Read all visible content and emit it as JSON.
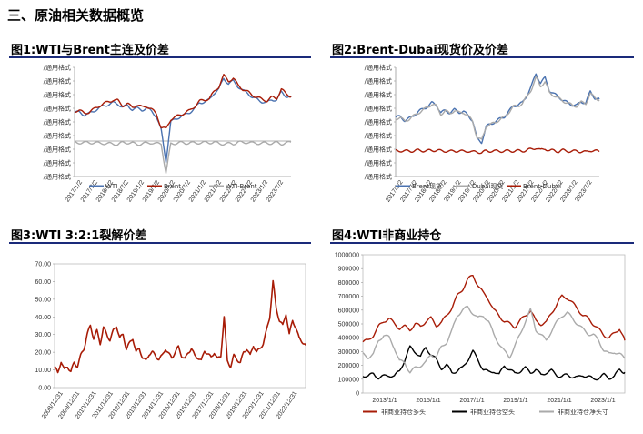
{
  "section": {
    "title": "三、原油相关数据概览"
  },
  "colors": {
    "red": "#a81c07",
    "blue": "#4a72b0",
    "gray": "#aaaaaa",
    "black": "#000000",
    "rule": "#1a2a7a"
  },
  "chart_data": [
    {
      "id": "fig1",
      "type": "line",
      "title": "图1:WTI与Brent主连及价差",
      "y_tick_labels": [
        "/通用格式",
        "/通用格式",
        "/通用格式",
        "/通用格式",
        "/通用格式",
        "/通用格式",
        "/通用格式",
        "/通用格式",
        "/通用格式"
      ],
      "x_tick_labels": [
        "2017/1/2",
        "2017/7/2",
        "2018/1/2",
        "2018/7/2",
        "2019/1/2",
        "2019/7/2",
        "2020/1/2",
        "2020/7/2",
        "2021/1/2",
        "2021/7/2",
        "2022/1/2",
        "2022/7/2",
        "2023/1/2",
        "2023/7/2"
      ],
      "series": [
        {
          "name": "WTI",
          "color": "blue",
          "values": [
            52,
            53,
            48,
            50,
            55,
            60,
            64,
            67,
            70,
            68,
            62,
            65,
            58,
            60,
            57,
            60,
            55,
            45,
            20,
            -37,
            35,
            40,
            45,
            48,
            53,
            60,
            70,
            72,
            75,
            88,
            95,
            115,
            105,
            110,
            100,
            92,
            88,
            80,
            76,
            72,
            70,
            76,
            75,
            90,
            82,
            80
          ]
        },
        {
          "name": "Brent",
          "color": "red",
          "values": [
            55,
            56,
            51,
            53,
            58,
            64,
            68,
            72,
            75,
            74,
            65,
            68,
            62,
            66,
            62,
            64,
            58,
            50,
            25,
            22,
            40,
            44,
            48,
            52,
            56,
            64,
            73,
            75,
            78,
            90,
            100,
            120,
            110,
            115,
            102,
            95,
            90,
            84,
            80,
            76,
            74,
            80,
            78,
            95,
            86,
            82
          ]
        },
        {
          "name": "WTI-Brent",
          "color": "gray",
          "values": [
            -3,
            -3,
            -3,
            -3,
            -3,
            -4,
            -4,
            -5,
            -5,
            -6,
            -3,
            -3,
            -4,
            -6,
            -5,
            -4,
            -3,
            -5,
            -5,
            -59,
            -5,
            -4,
            -3,
            -4,
            -3,
            -4,
            -3,
            -3,
            -3,
            -2,
            -5,
            -5,
            -5,
            -5,
            -2,
            -3,
            -2,
            -4,
            -4,
            -4,
            -4,
            -4,
            -3,
            -5,
            -4,
            -2
          ]
        }
      ],
      "ylim": [
        -65,
        135
      ]
    },
    {
      "id": "fig2",
      "type": "line",
      "title": "图2:Brent-Dubai现货价及价差",
      "y_tick_labels": [
        "/通用格式",
        "/通用格式",
        "/通用格式",
        "/通用格式",
        "/通用格式",
        "/通用格式",
        "/通用格式",
        "/通用格式",
        "/通用格式"
      ],
      "x_tick_labels": [
        "2017/1/2",
        "2017/7/2",
        "2018/1/2",
        "2018/7/2",
        "2019/1/2",
        "2019/7/2",
        "2020/1/2",
        "2020/7/2",
        "2021/1/2",
        "2021/7/2",
        "2022/1/2",
        "2022/7/2",
        "2023/1/2",
        "2023/7/2"
      ],
      "series": [
        {
          "name": "Brent现货",
          "color": "blue",
          "values": [
            55,
            56,
            50,
            53,
            58,
            64,
            68,
            72,
            78,
            75,
            62,
            66,
            62,
            67,
            63,
            64,
            58,
            50,
            20,
            15,
            40,
            44,
            48,
            52,
            56,
            64,
            73,
            75,
            78,
            90,
            105,
            125,
            110,
            118,
            98,
            92,
            88,
            82,
            78,
            75,
            74,
            80,
            78,
            96,
            86,
            84
          ]
        },
        {
          "name": "Dubai现货",
          "color": "gray",
          "values": [
            53,
            54,
            49,
            52,
            57,
            62,
            66,
            71,
            76,
            73,
            60,
            65,
            61,
            66,
            62,
            63,
            57,
            49,
            22,
            18,
            41,
            43,
            47,
            51,
            55,
            63,
            72,
            73,
            77,
            88,
            100,
            118,
            105,
            112,
            94,
            90,
            85,
            81,
            78,
            74,
            73,
            79,
            77,
            93,
            86,
            83
          ]
        },
        {
          "name": "Brent-Dubai",
          "color": "red",
          "values": [
            1,
            1.5,
            0.5,
            1,
            1,
            2,
            1.5,
            1,
            2,
            2,
            1,
            1,
            0,
            1,
            1,
            0,
            1,
            -1,
            0,
            -2,
            1,
            1,
            0.5,
            1,
            0.5,
            1,
            1,
            1,
            1,
            2,
            4,
            6,
            2,
            5,
            1,
            2,
            0,
            2,
            1,
            0,
            1,
            0,
            -1,
            2,
            1,
            0
          ]
        }
      ],
      "ylim": [
        -40,
        135
      ]
    },
    {
      "id": "fig3",
      "type": "line",
      "title": "图3:WTI 3:2:1裂解价差",
      "y_tick_labels": [
        "0.00",
        "10.00",
        "20.00",
        "30.00",
        "40.00",
        "50.00",
        "60.00",
        "70.00"
      ],
      "x_tick_labels": [
        "2008/12/31",
        "2009/12/31",
        "2010/12/31",
        "2011/12/31",
        "2012/12/31",
        "2013/12/31",
        "2014/12/31",
        "2015/12/31",
        "2016/12/31",
        "2017/12/31",
        "2018/12/31",
        "2019/12/31",
        "2020/12/31",
        "2021/12/31",
        "2022/12/31"
      ],
      "series": [
        {
          "name": "WTI 3:2:1裂解价差",
          "color": "red",
          "values": [
            12,
            8,
            15,
            10,
            12,
            9,
            14,
            12,
            18,
            22,
            30,
            35,
            28,
            32,
            25,
            34,
            30,
            27,
            32,
            35,
            28,
            30,
            22,
            25,
            28,
            20,
            22,
            17,
            15,
            19,
            20,
            18,
            16,
            18,
            22,
            19,
            17,
            20,
            23,
            18,
            16,
            20,
            22,
            18,
            17,
            15,
            21,
            19,
            17,
            20,
            16,
            18,
            40,
            15,
            12,
            18,
            16,
            14,
            20,
            22,
            18,
            24,
            20,
            22,
            25,
            32,
            40,
            60,
            45,
            38,
            35,
            42,
            30,
            38,
            34,
            28,
            26,
            24
          ]
        }
      ],
      "ylim": [
        0,
        70
      ]
    },
    {
      "id": "fig4",
      "type": "line",
      "title": "图4:WTI非商业持仓",
      "y_tick_labels": [
        "0",
        "100000",
        "200000",
        "300000",
        "400000",
        "500000",
        "600000",
        "700000",
        "800000",
        "900000",
        "1000000"
      ],
      "x_tick_labels": [
        "2013/1/1",
        "2015/1/1",
        "2017/1/1",
        "2019/1/1",
        "2021/1/1",
        "2023/1/1"
      ],
      "series": [
        {
          "name": "非商业持仓多头",
          "color": "red",
          "values": [
            370000,
            380000,
            420000,
            480000,
            520000,
            540000,
            500000,
            470000,
            480000,
            460000,
            500000,
            480000,
            520000,
            540000,
            490000,
            510000,
            560000,
            620000,
            700000,
            750000,
            820000,
            850000,
            780000,
            720000,
            680000,
            600000,
            560000,
            520000,
            500000,
            480000,
            520000,
            560000,
            600000,
            520000,
            500000,
            510000,
            580000,
            640000,
            700000,
            690000,
            650000,
            610000,
            560000,
            540000,
            500000,
            460000,
            420000,
            400000,
            430000,
            470000,
            380000
          ]
        },
        {
          "name": "非商业持仓空头",
          "color": "black",
          "values": [
            130000,
            120000,
            140000,
            110000,
            120000,
            130000,
            120000,
            160000,
            240000,
            330000,
            300000,
            260000,
            330000,
            280000,
            240000,
            180000,
            200000,
            150000,
            160000,
            180000,
            240000,
            300000,
            240000,
            170000,
            150000,
            160000,
            130000,
            200000,
            170000,
            140000,
            160000,
            180000,
            150000,
            170000,
            130000,
            150000,
            160000,
            130000,
            120000,
            130000,
            120000,
            110000,
            130000,
            120000,
            100000,
            110000,
            130000,
            110000,
            120000,
            170000,
            150000
          ]
        },
        {
          "name": "非商业持仓净头寸",
          "color": "gray",
          "values": [
            280000,
            260000,
            280000,
            380000,
            420000,
            400000,
            330000,
            230000,
            220000,
            150000,
            180000,
            200000,
            220000,
            280000,
            260000,
            330000,
            370000,
            450000,
            560000,
            600000,
            620000,
            580000,
            540000,
            560000,
            520000,
            420000,
            360000,
            300000,
            260000,
            340000,
            420000,
            520000,
            600000,
            460000,
            420000,
            380000,
            450000,
            510000,
            560000,
            580000,
            540000,
            500000,
            460000,
            430000,
            420000,
            380000,
            310000,
            280000,
            300000,
            280000,
            250000
          ]
        }
      ],
      "ylim": [
        0,
        1000000
      ]
    }
  ]
}
